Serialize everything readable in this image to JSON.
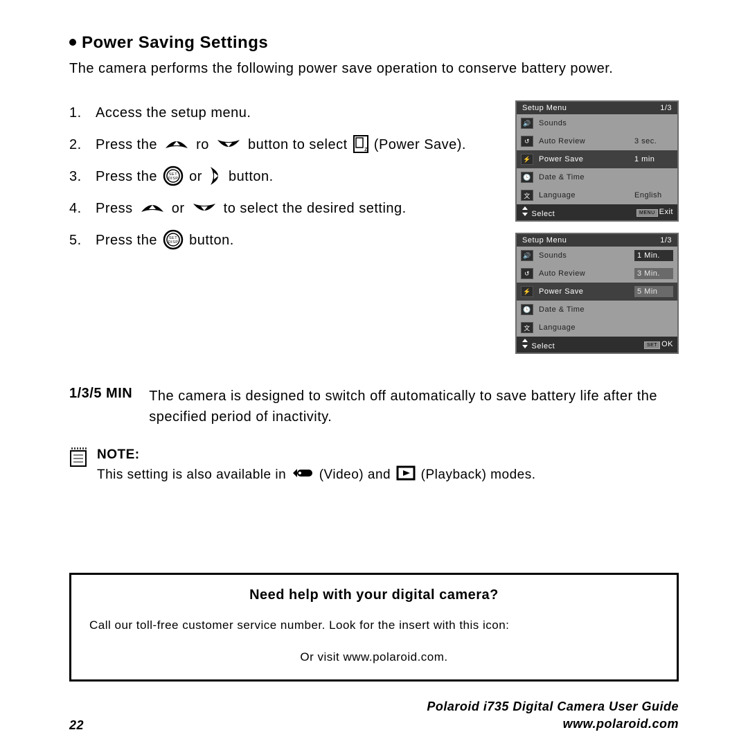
{
  "heading": "Power Saving Settings",
  "intro": "The camera performs the following power save operation to conserve battery power.",
  "steps": {
    "s1": "Access the setup menu.",
    "s2a": "Press the ",
    "s2b": " ro ",
    "s2c": "  button to select ",
    "s2d": " (Power Save).",
    "s3a": "Press the ",
    "s3b": " or ",
    "s3c": " button.",
    "s4a": "Press ",
    "s4b": "  or ",
    "s4c": "  to select the desired setting.",
    "s5a": "Press the ",
    "s5b": " button."
  },
  "screen1": {
    "title": "Setup Menu",
    "page": "1/3",
    "rows": [
      {
        "icon": "🔊",
        "label": "Sounds",
        "val": ""
      },
      {
        "icon": "↺",
        "label": "Auto Review",
        "val": "3 sec."
      },
      {
        "icon": "⚡",
        "label": "Power Save",
        "val": "1 min",
        "hl": true
      },
      {
        "icon": "🕓",
        "label": "Date & Time",
        "val": ""
      },
      {
        "icon": "文",
        "label": "Language",
        "val": "English"
      }
    ],
    "footL": "Select",
    "footR": "Exit",
    "footTag": "MENU"
  },
  "screen2": {
    "title": "Setup Menu",
    "page": "1/3",
    "rows": [
      {
        "icon": "🔊",
        "label": "Sounds",
        "opt": "1 Min.",
        "sel": true
      },
      {
        "icon": "↺",
        "label": "Auto Review",
        "opt": "3 Min."
      },
      {
        "icon": "⚡",
        "label": "Power Save",
        "opt": "5 Min",
        "hl": true
      },
      {
        "icon": "🕓",
        "label": "Date & Time"
      },
      {
        "icon": "文",
        "label": "Language"
      }
    ],
    "footL": "Select",
    "footR": "OK",
    "footTag": "SET"
  },
  "desc": {
    "label": "1/3/5 MIN",
    "text": "The camera is designed to switch off automatically to save battery life after the specified period of inactivity."
  },
  "note": {
    "title": "NOTE:",
    "a": "This setting is also available in ",
    "b": " (Video) and ",
    "c": " (Playback) modes."
  },
  "help": {
    "q": "Need help with your digital camera?",
    "line": "Call our toll-free customer service number. Look for the insert with this icon:",
    "visit": "Or visit www.polaroid.com."
  },
  "footer": {
    "page": "22",
    "guide": "Polaroid i735 Digital Camera User Guide",
    "url": "www.polaroid.com"
  },
  "colors": {
    "text": "#000000",
    "screenBg": "#9e9e9e",
    "screenDark": "#3a3a3a",
    "highlight": "#404040"
  }
}
